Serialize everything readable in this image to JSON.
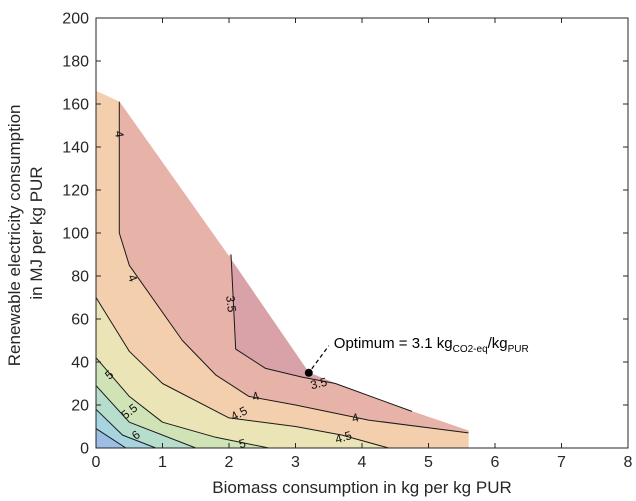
{
  "chart_data": {
    "type": "contour",
    "xlabel": "Biomass consumption in kg per kg PUR",
    "ylabel_lines": [
      "Renewable electricity consumption",
      "in MJ per kg PUR"
    ],
    "xlim": [
      0,
      8
    ],
    "ylim": [
      0,
      200
    ],
    "xticks": [
      0,
      1,
      2,
      3,
      4,
      5,
      6,
      7,
      8
    ],
    "yticks": [
      0,
      20,
      40,
      60,
      80,
      100,
      120,
      140,
      160,
      180,
      200
    ],
    "grid": false,
    "feasible_region_boundary": [
      [
        0,
        166
      ],
      [
        3.2,
        35
      ],
      [
        5.6,
        8
      ],
      [
        5.6,
        0
      ],
      [
        0,
        0
      ]
    ],
    "filled_bands": [
      {
        "level": "<3.5",
        "color": "#d9a2a8",
        "polygon": [
          [
            2.0,
            89
          ],
          [
            3.2,
            35
          ],
          [
            3.6,
            30
          ],
          [
            3.1,
            33
          ],
          [
            2.55,
            37
          ],
          [
            2.1,
            46
          ],
          [
            2.03,
            90
          ]
        ]
      },
      {
        "level": "3.5-4",
        "color": "#e7b2a8",
        "polygon": [
          [
            0.35,
            161
          ],
          [
            2.0,
            89
          ],
          [
            2.03,
            90
          ],
          [
            2.1,
            46
          ],
          [
            2.55,
            37
          ],
          [
            3.1,
            33
          ],
          [
            3.6,
            30
          ],
          [
            4.75,
            17
          ],
          [
            5.6,
            8
          ],
          [
            5.6,
            7
          ],
          [
            4.1,
            13
          ],
          [
            3.0,
            20
          ],
          [
            2.3,
            24
          ],
          [
            1.8,
            34
          ],
          [
            1.3,
            50
          ],
          [
            0.5,
            85
          ],
          [
            0.35,
            100
          ]
        ]
      },
      {
        "level": "4-4.5",
        "color": "#f4cfae",
        "polygon": [
          [
            0,
            166
          ],
          [
            0.35,
            161
          ],
          [
            0.35,
            100
          ],
          [
            0.5,
            85
          ],
          [
            1.3,
            50
          ],
          [
            1.8,
            34
          ],
          [
            2.3,
            24
          ],
          [
            3.0,
            20
          ],
          [
            4.1,
            13
          ],
          [
            5.6,
            7
          ],
          [
            5.6,
            0
          ],
          [
            4.4,
            0
          ],
          [
            3.7,
            6
          ],
          [
            3.0,
            10
          ],
          [
            2.0,
            14
          ],
          [
            1.0,
            30
          ],
          [
            0.5,
            45
          ],
          [
            0,
            70
          ]
        ]
      },
      {
        "level": "4.5-5",
        "color": "#ebe4b6",
        "polygon": [
          [
            0,
            70
          ],
          [
            0.5,
            45
          ],
          [
            1.0,
            30
          ],
          [
            2.0,
            14
          ],
          [
            3.0,
            10
          ],
          [
            3.7,
            6
          ],
          [
            4.4,
            0
          ],
          [
            2.6,
            0
          ],
          [
            1.8,
            5
          ],
          [
            1.0,
            12
          ],
          [
            0.5,
            24
          ],
          [
            0,
            42
          ]
        ]
      },
      {
        "level": "5-5.5",
        "color": "#cfe3b6",
        "polygon": [
          [
            0,
            42
          ],
          [
            0.5,
            24
          ],
          [
            1.0,
            12
          ],
          [
            1.8,
            5
          ],
          [
            2.6,
            0
          ],
          [
            1.5,
            0
          ],
          [
            0.5,
            12
          ],
          [
            0,
            29
          ]
        ]
      },
      {
        "level": "5.5-6",
        "color": "#b7ddcc",
        "polygon": [
          [
            0,
            29
          ],
          [
            0.5,
            12
          ],
          [
            1.5,
            0
          ],
          [
            0.9,
            0
          ],
          [
            0.4,
            6
          ],
          [
            0,
            18
          ]
        ]
      },
      {
        "level": "6-6.5",
        "color": "#a6d4df",
        "polygon": [
          [
            0,
            18
          ],
          [
            0.4,
            6
          ],
          [
            0.9,
            0
          ],
          [
            0.45,
            0
          ],
          [
            0,
            9
          ]
        ]
      },
      {
        "level": ">6.5",
        "color": "#9dbde3",
        "polygon": [
          [
            0,
            9
          ],
          [
            0.45,
            0
          ],
          [
            0,
            0
          ]
        ]
      }
    ],
    "contour_lines": [
      {
        "level": "3.5",
        "points": [
          [
            2.03,
            90
          ],
          [
            2.1,
            46
          ],
          [
            2.55,
            37
          ],
          [
            3.1,
            33
          ],
          [
            3.6,
            30
          ],
          [
            4.75,
            17
          ]
        ]
      },
      {
        "level": "4",
        "points": [
          [
            0.35,
            161
          ],
          [
            0.35,
            100
          ],
          [
            0.5,
            85
          ],
          [
            1.3,
            50
          ],
          [
            1.8,
            34
          ],
          [
            2.3,
            24
          ],
          [
            3.0,
            20
          ],
          [
            4.1,
            13
          ],
          [
            5.6,
            7
          ]
        ]
      },
      {
        "level": "4.5",
        "points": [
          [
            0,
            70
          ],
          [
            0.5,
            45
          ],
          [
            1.0,
            30
          ],
          [
            2.0,
            14
          ],
          [
            3.0,
            10
          ],
          [
            3.7,
            6
          ],
          [
            4.4,
            0
          ]
        ]
      },
      {
        "level": "5",
        "points": [
          [
            0,
            42
          ],
          [
            0.5,
            24
          ],
          [
            1.0,
            12
          ],
          [
            1.8,
            5
          ],
          [
            2.6,
            0
          ]
        ]
      },
      {
        "level": "5.5",
        "points": [
          [
            0,
            29
          ],
          [
            0.5,
            12
          ],
          [
            1.5,
            0
          ]
        ]
      },
      {
        "level": "6",
        "points": [
          [
            0,
            18
          ],
          [
            0.4,
            6
          ],
          [
            0.9,
            0
          ]
        ]
      },
      {
        "level": "6.5",
        "points": [
          [
            0,
            9
          ],
          [
            0.45,
            0
          ]
        ]
      }
    ],
    "contour_labels": [
      {
        "text": "4",
        "x": 0.35,
        "y": 146,
        "angle": 82
      },
      {
        "text": "4",
        "x": 0.55,
        "y": 79,
        "angle": 68
      },
      {
        "text": "3.5",
        "x": 2.03,
        "y": 67,
        "angle": 84
      },
      {
        "text": "4",
        "x": 2.4,
        "y": 24,
        "angle": -18
      },
      {
        "text": "4.5",
        "x": 2.15,
        "y": 16,
        "angle": -28
      },
      {
        "text": "3.5",
        "x": 3.35,
        "y": 30,
        "angle": -14
      },
      {
        "text": "4",
        "x": 3.9,
        "y": 14,
        "angle": -14
      },
      {
        "text": "5",
        "x": 2.2,
        "y": 2,
        "angle": -12
      },
      {
        "text": "4.5",
        "x": 3.72,
        "y": 5,
        "angle": -16
      },
      {
        "text": "5",
        "x": 0.2,
        "y": 34,
        "angle": -40
      },
      {
        "text": "5.5",
        "x": 0.5,
        "y": 17,
        "angle": -38
      },
      {
        "text": "6",
        "x": 0.6,
        "y": 6,
        "angle": -38
      }
    ],
    "optimum": {
      "x": 3.2,
      "y": 35
    },
    "annotation": {
      "prefix": "Optimum = 3.1 kg",
      "sub1": "CO2-eq",
      "mid": "/kg",
      "sub2": "PUR"
    }
  }
}
